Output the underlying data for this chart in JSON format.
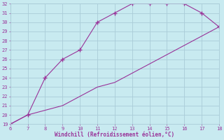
{
  "xlabel": "Windchill (Refroidissement éolien,°C)",
  "x_upper": [
    6,
    7,
    8,
    9,
    10,
    11,
    12,
    13,
    14,
    15,
    16,
    17,
    18
  ],
  "y_upper": [
    19,
    20,
    24,
    26,
    27,
    30,
    31,
    32,
    32,
    32,
    32,
    31,
    29.5
  ],
  "x_lower": [
    6,
    7,
    8,
    9,
    10,
    11,
    12,
    13,
    14,
    15,
    16,
    17,
    18
  ],
  "y_lower": [
    19,
    20,
    20.5,
    21,
    22,
    23,
    23.5,
    24.5,
    25.5,
    26.5,
    27.5,
    28.5,
    29.5
  ],
  "line_color": "#993399",
  "bg_color": "#c8eaf0",
  "grid_color": "#aaccd8",
  "text_color": "#993399",
  "xlim": [
    6,
    18
  ],
  "ylim": [
    19,
    32
  ],
  "xticks": [
    6,
    7,
    8,
    9,
    10,
    11,
    12,
    13,
    14,
    15,
    16,
    17,
    18
  ],
  "yticks": [
    19,
    20,
    21,
    22,
    23,
    24,
    25,
    26,
    27,
    28,
    29,
    30,
    31,
    32
  ]
}
